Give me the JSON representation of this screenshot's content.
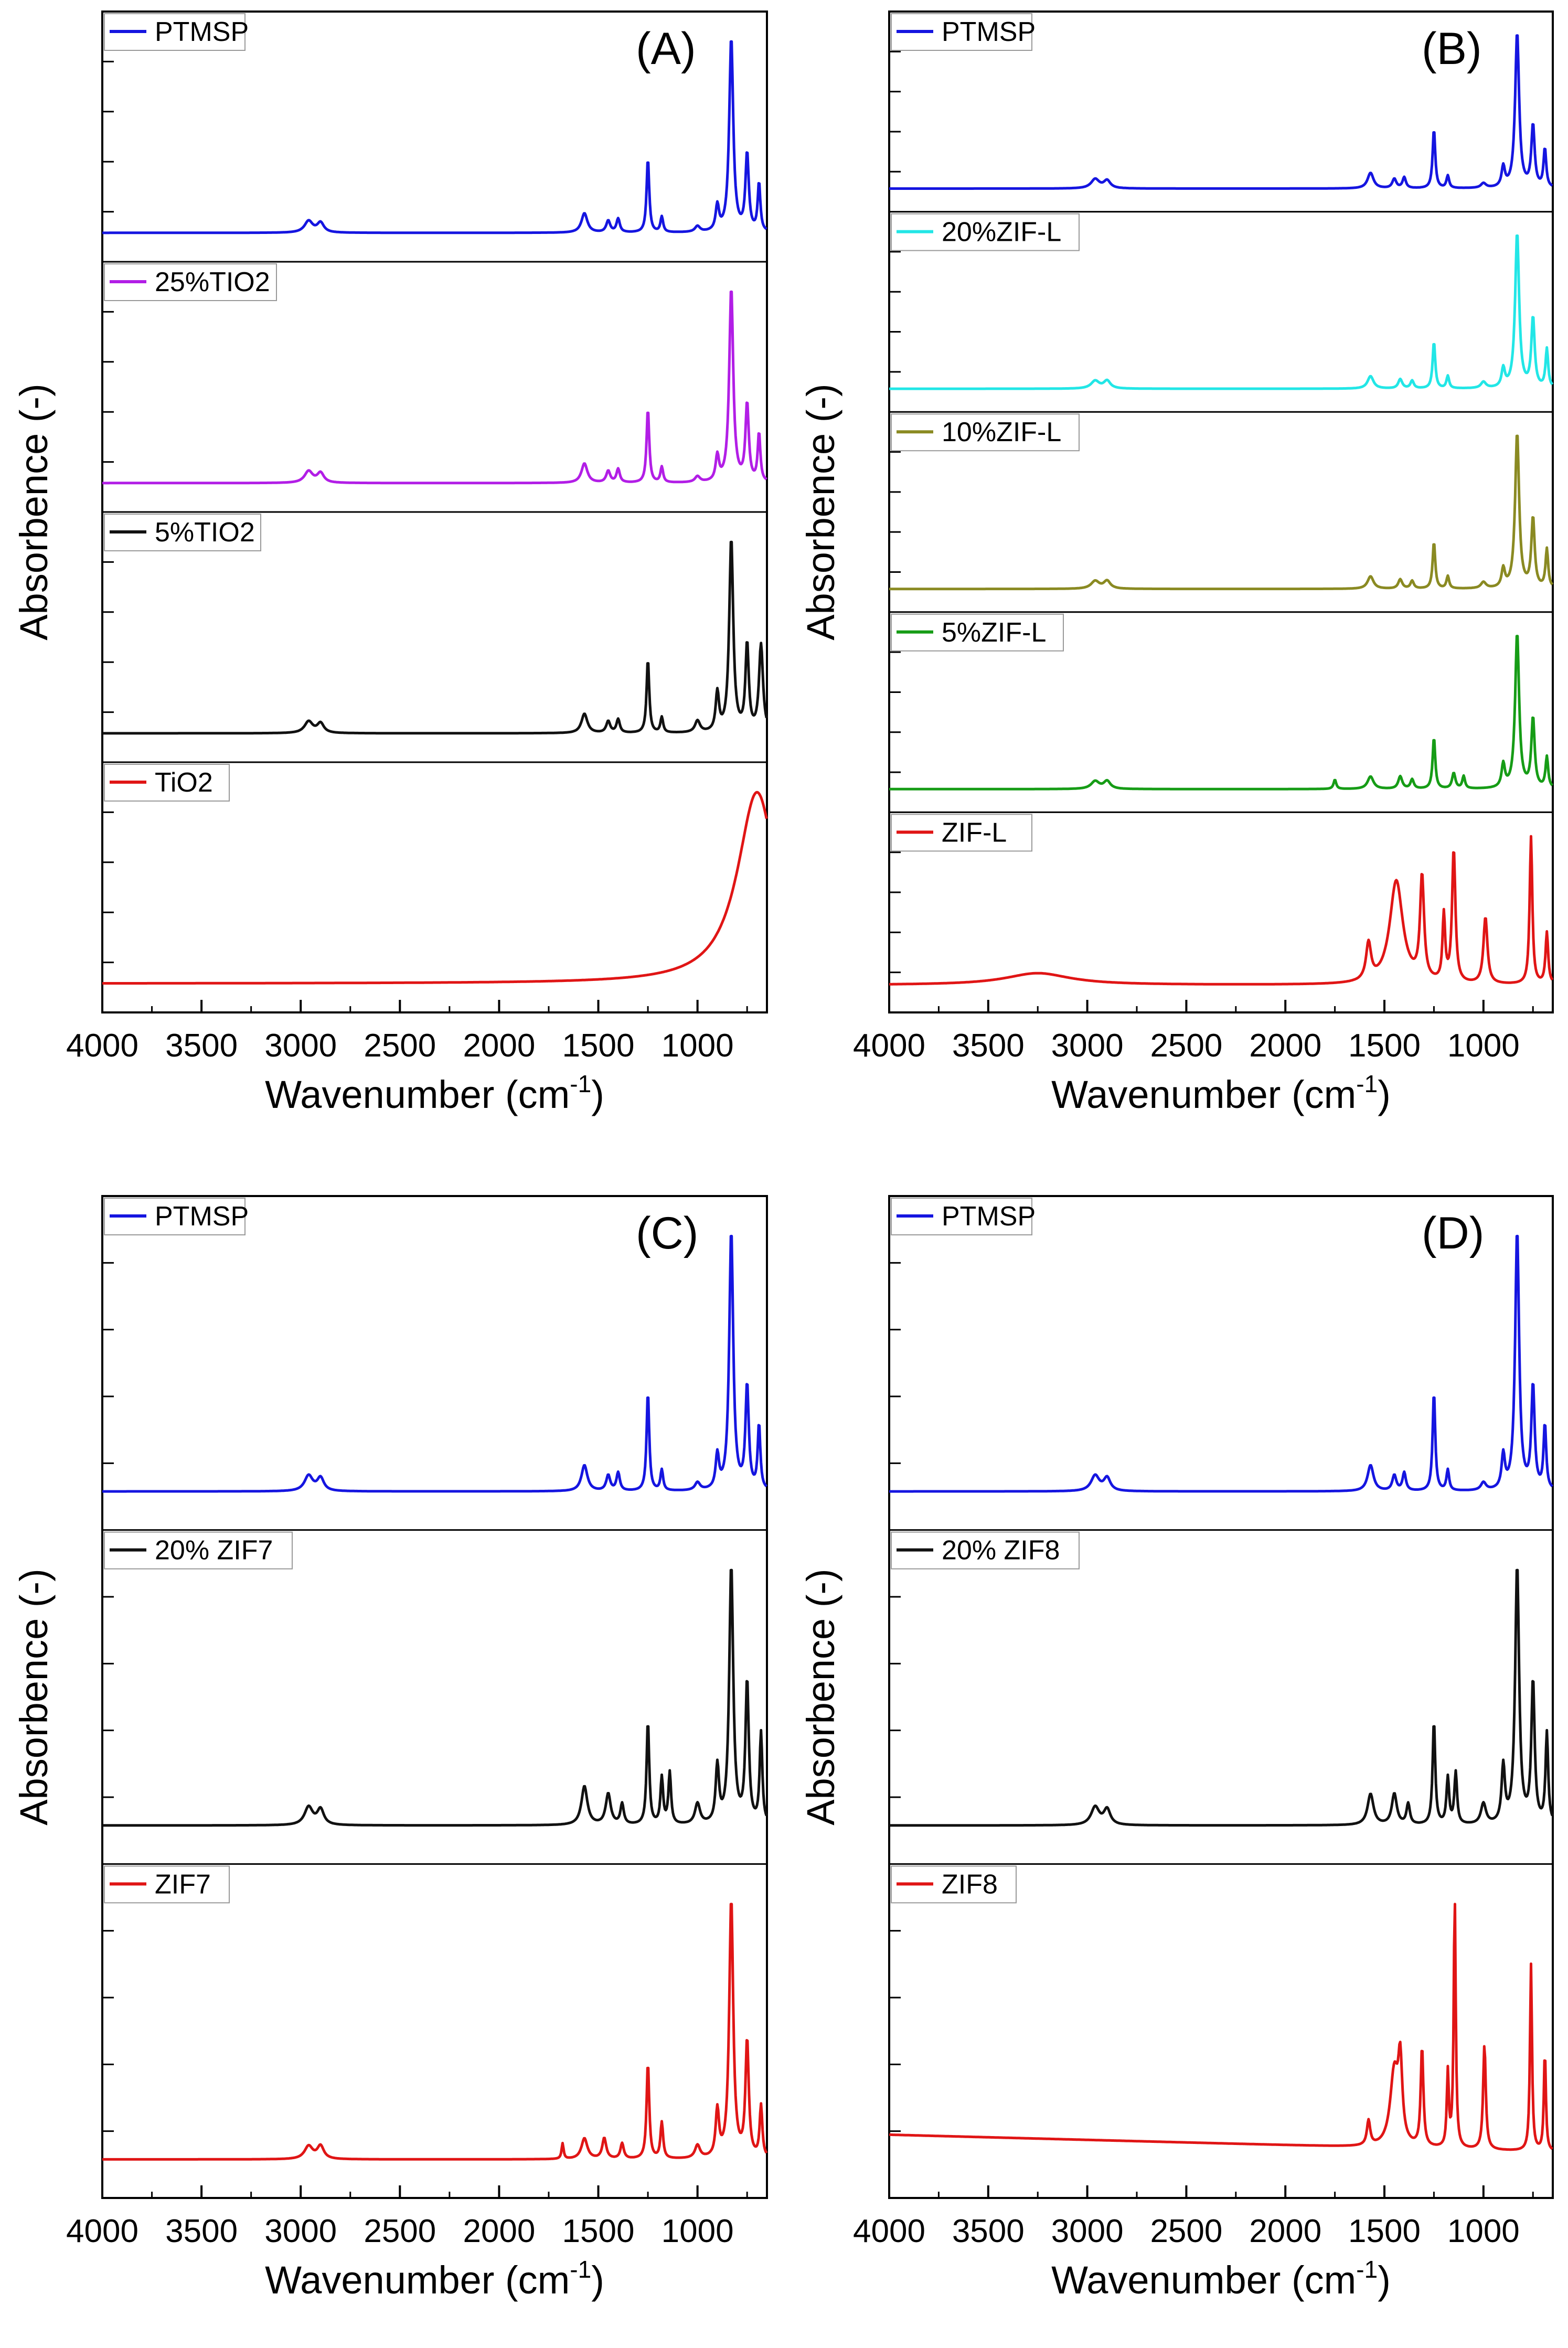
{
  "figure": {
    "type": "ftir-stacked-spectra",
    "panels": [
      {
        "id": "A",
        "label": "(A)",
        "xlabel": "Wavenumber (cm",
        "xlabel_sup": "-1",
        "ylabel": "Absorbence (-)",
        "series": [
          {
            "name": "PTMSP",
            "color": "#1515e0",
            "profile": "ptmsp"
          },
          {
            "name": "25%TIO2",
            "color": "#b21ee6",
            "profile": "ptmsp"
          },
          {
            "name": "5%TIO2",
            "color": "#111111",
            "profile": "tio2_5"
          },
          {
            "name": "TiO2",
            "color": "#e01515",
            "profile": "tio2"
          }
        ]
      },
      {
        "id": "B",
        "label": "(B)",
        "xlabel": "Wavenumber (cm",
        "xlabel_sup": "-1",
        "ylabel": "Absorbence (-)",
        "series": [
          {
            "name": "PTMSP",
            "color": "#1515e0",
            "profile": "ptmsp"
          },
          {
            "name": "20%ZIF-L",
            "color": "#22e6e6",
            "profile": "zifl_mix"
          },
          {
            "name": "10%ZIF-L",
            "color": "#8a8a22",
            "profile": "zifl_mix"
          },
          {
            "name": "5%ZIF-L",
            "color": "#169c16",
            "profile": "zifl_mix5"
          },
          {
            "name": "ZIF-L",
            "color": "#e01515",
            "profile": "zifl"
          }
        ]
      },
      {
        "id": "C",
        "label": "(C)",
        "xlabel": "Wavenumber (cm",
        "xlabel_sup": "-1",
        "ylabel": "Absorbence (-)",
        "series": [
          {
            "name": "PTMSP",
            "color": "#1515e0",
            "profile": "ptmsp"
          },
          {
            "name": "20% ZIF7",
            "color": "#111111",
            "profile": "zif7_mix"
          },
          {
            "name": "ZIF7",
            "color": "#e01515",
            "profile": "zif7"
          }
        ]
      },
      {
        "id": "D",
        "label": "(D)",
        "xlabel": "Wavenumber (cm",
        "xlabel_sup": "-1",
        "ylabel": "Absorbence (-)",
        "series": [
          {
            "name": "PTMSP",
            "color": "#1515e0",
            "profile": "ptmsp"
          },
          {
            "name": "20% ZIF8",
            "color": "#111111",
            "profile": "zif8_mix"
          },
          {
            "name": "ZIF8",
            "color": "#e01515",
            "profile": "zif8"
          }
        ]
      }
    ]
  },
  "chart_data": {
    "type": "line",
    "title": "",
    "xlabel": "Wavenumber (cm-1)",
    "ylabel": "Absorbence (-)",
    "xlim": [
      4000,
      650
    ],
    "x_ticks": [
      4000,
      3500,
      3000,
      2500,
      2000,
      1500,
      1000
    ],
    "x_tick_labels": [
      "4000",
      "3500",
      "3000",
      "2500",
      "2000",
      "1500",
      "1000"
    ],
    "profiles": {
      "ptmsp": {
        "baseline": 0.02,
        "peaks": [
          [
            2960,
            0.06,
            25
          ],
          [
            2900,
            0.05,
            20
          ],
          [
            1570,
            0.1,
            18
          ],
          [
            1450,
            0.06,
            12
          ],
          [
            1400,
            0.07,
            10
          ],
          [
            1250,
            0.38,
            8
          ],
          [
            1180,
            0.08,
            8
          ],
          [
            1000,
            0.03,
            15
          ],
          [
            900,
            0.13,
            10
          ],
          [
            830,
            1.0,
            12
          ],
          [
            750,
            0.4,
            10
          ],
          [
            690,
            0.25,
            8
          ]
        ]
      },
      "tio2_5": {
        "baseline": 0.02,
        "peaks": [
          [
            2960,
            0.06,
            25
          ],
          [
            2900,
            0.05,
            20
          ],
          [
            1570,
            0.1,
            18
          ],
          [
            1450,
            0.06,
            12
          ],
          [
            1400,
            0.07,
            10
          ],
          [
            1250,
            0.38,
            8
          ],
          [
            1180,
            0.08,
            8
          ],
          [
            1000,
            0.06,
            15
          ],
          [
            900,
            0.2,
            10
          ],
          [
            830,
            1.0,
            12
          ],
          [
            750,
            0.45,
            10
          ],
          [
            680,
            0.45,
            12
          ]
        ]
      },
      "tio2": {
        "baseline": 0.02,
        "peaks": [
          [
            700,
            1.0,
            120
          ]
        ]
      },
      "zifl_mix": {
        "baseline": 0.02,
        "peaks": [
          [
            2960,
            0.05,
            25
          ],
          [
            2900,
            0.05,
            20
          ],
          [
            1570,
            0.08,
            18
          ],
          [
            1420,
            0.06,
            12
          ],
          [
            1360,
            0.05,
            10
          ],
          [
            1250,
            0.3,
            8
          ],
          [
            1180,
            0.08,
            8
          ],
          [
            1000,
            0.04,
            15
          ],
          [
            900,
            0.12,
            10
          ],
          [
            830,
            1.0,
            12
          ],
          [
            750,
            0.45,
            10
          ],
          [
            680,
            0.25,
            8
          ]
        ]
      },
      "zifl_mix5": {
        "baseline": 0.02,
        "peaks": [
          [
            2960,
            0.05,
            25
          ],
          [
            2900,
            0.05,
            20
          ],
          [
            1750,
            0.06,
            8
          ],
          [
            1570,
            0.08,
            18
          ],
          [
            1420,
            0.08,
            12
          ],
          [
            1360,
            0.06,
            10
          ],
          [
            1250,
            0.33,
            8
          ],
          [
            1150,
            0.1,
            10
          ],
          [
            1100,
            0.08,
            8
          ],
          [
            900,
            0.15,
            10
          ],
          [
            830,
            1.0,
            12
          ],
          [
            750,
            0.45,
            10
          ],
          [
            680,
            0.2,
            8
          ]
        ]
      },
      "zifl": {
        "baseline": 0.05,
        "peaks": [
          [
            3250,
            0.08,
            200
          ],
          [
            1580,
            0.25,
            15
          ],
          [
            1440,
            0.7,
            40
          ],
          [
            1310,
            0.7,
            12
          ],
          [
            1200,
            0.45,
            8
          ],
          [
            1150,
            0.9,
            10
          ],
          [
            990,
            0.45,
            12
          ],
          [
            760,
            1.0,
            8
          ],
          [
            680,
            0.35,
            8
          ]
        ]
      },
      "zif7_mix": {
        "baseline": 0.02,
        "peaks": [
          [
            2960,
            0.07,
            25
          ],
          [
            2900,
            0.06,
            20
          ],
          [
            1570,
            0.15,
            18
          ],
          [
            1450,
            0.12,
            15
          ],
          [
            1380,
            0.08,
            10
          ],
          [
            1250,
            0.4,
            8
          ],
          [
            1180,
            0.18,
            8
          ],
          [
            1140,
            0.2,
            8
          ],
          [
            1000,
            0.08,
            15
          ],
          [
            900,
            0.22,
            10
          ],
          [
            830,
            1.0,
            12
          ],
          [
            750,
            0.55,
            10
          ],
          [
            680,
            0.35,
            8
          ]
        ]
      },
      "zif7": {
        "baseline": 0.02,
        "peaks": [
          [
            2960,
            0.05,
            25
          ],
          [
            2900,
            0.05,
            20
          ],
          [
            1680,
            0.06,
            6
          ],
          [
            1570,
            0.08,
            18
          ],
          [
            1470,
            0.08,
            12
          ],
          [
            1380,
            0.06,
            10
          ],
          [
            1250,
            0.37,
            8
          ],
          [
            1180,
            0.14,
            8
          ],
          [
            1000,
            0.05,
            15
          ],
          [
            900,
            0.18,
            10
          ],
          [
            830,
            1.0,
            12
          ],
          [
            750,
            0.45,
            10
          ],
          [
            680,
            0.2,
            8
          ]
        ]
      },
      "zif8_mix": {
        "baseline": 0.02,
        "peaks": [
          [
            2960,
            0.07,
            25
          ],
          [
            2900,
            0.06,
            20
          ],
          [
            1570,
            0.12,
            18
          ],
          [
            1450,
            0.12,
            15
          ],
          [
            1380,
            0.08,
            10
          ],
          [
            1250,
            0.4,
            8
          ],
          [
            1180,
            0.18,
            8
          ],
          [
            1140,
            0.2,
            8
          ],
          [
            1000,
            0.08,
            15
          ],
          [
            900,
            0.22,
            10
          ],
          [
            830,
            1.0,
            12
          ],
          [
            750,
            0.55,
            10
          ],
          [
            680,
            0.35,
            8
          ]
        ]
      },
      "zif8": {
        "baseline": 0.05,
        "slope": 0.07,
        "peaks": [
          [
            1580,
            0.1,
            10
          ],
          [
            1450,
            0.3,
            25
          ],
          [
            1420,
            0.3,
            12
          ],
          [
            1310,
            0.4,
            8
          ],
          [
            1180,
            0.3,
            6
          ],
          [
            1145,
            1.0,
            6
          ],
          [
            995,
            0.42,
            8
          ],
          [
            760,
            0.75,
            6
          ],
          [
            690,
            0.4,
            6
          ]
        ]
      }
    }
  }
}
